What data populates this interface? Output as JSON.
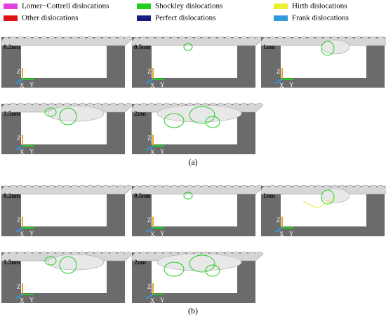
{
  "legend": [
    {
      "label": "Lomer−Cottrell dislocations",
      "color": "#e040e0"
    },
    {
      "label": "Shockley dislocations",
      "color": "#22cc22"
    },
    {
      "label": "Hirth dislocations",
      "color": "#eeee30"
    },
    {
      "label": "Other dislocations",
      "color": "#dd1111"
    },
    {
      "label": "Perfect dislocations",
      "color": "#1a1a80"
    },
    {
      "label": "Frank dislocations",
      "color": "#3399dd"
    }
  ],
  "axis_labels": [
    "Z",
    "X",
    "Y"
  ],
  "figures": [
    {
      "caption": "(a)",
      "panels": [
        "0.2nm",
        "0.5nm",
        "1nm",
        "1.5nm",
        "2nm"
      ]
    },
    {
      "caption": "(b)",
      "panels": [
        "0.2nm",
        "0.5nm",
        "1nm",
        "1.5nm",
        "2nm"
      ]
    }
  ]
}
